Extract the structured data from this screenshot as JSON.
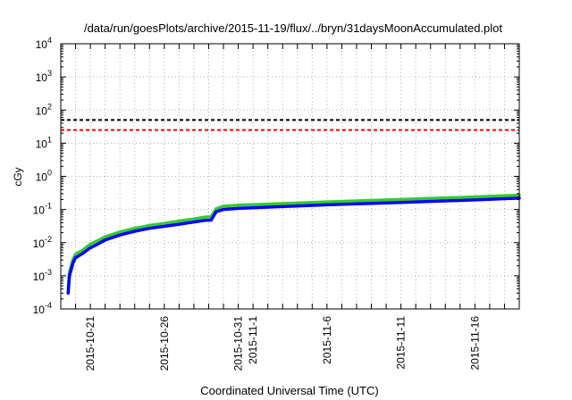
{
  "chart_data": {
    "type": "line",
    "title": "/data/run/goesPlots/archive/2015-11-19/flux/../bryn/31daysMoonAccumulated.plot",
    "xlabel": "Coordinated Universal Time (UTC)",
    "ylabel": "cGy",
    "yscale": "log",
    "ylim": [
      0.0001,
      10000
    ],
    "xlim": [
      "2015-10-19",
      "2015-11-19"
    ],
    "grid": true,
    "legend": "none",
    "y_ticks": [
      {
        "value": 0.0001,
        "base": "10",
        "exp": "-4"
      },
      {
        "value": 0.001,
        "base": "10",
        "exp": "-3"
      },
      {
        "value": 0.01,
        "base": "10",
        "exp": "-2"
      },
      {
        "value": 0.1,
        "base": "10",
        "exp": "-1"
      },
      {
        "value": 1,
        "base": "10",
        "exp": "0"
      },
      {
        "value": 10,
        "base": "10",
        "exp": "1"
      },
      {
        "value": 100,
        "base": "10",
        "exp": "2"
      },
      {
        "value": 1000,
        "base": "10",
        "exp": "3"
      },
      {
        "value": 10000,
        "base": "10",
        "exp": "4"
      }
    ],
    "x_ticks": [
      {
        "date": "2015-10-21",
        "label": "2015-10-21"
      },
      {
        "date": "2015-10-26",
        "label": "2015-10-26"
      },
      {
        "date": "2015-10-31",
        "label": "2015-10-31"
      },
      {
        "date": "2015-11-01",
        "label": "2015-11-1"
      },
      {
        "date": "2015-11-06",
        "label": "2015-11-6"
      },
      {
        "date": "2015-11-11",
        "label": "2015-11-11"
      },
      {
        "date": "2015-11-16",
        "label": "2015-11-16"
      }
    ],
    "reference_lines": [
      {
        "value": 50,
        "color": "#000000",
        "style": "dashed"
      },
      {
        "value": 25,
        "color": "#ff0000",
        "style": "dashed"
      }
    ],
    "series": [
      {
        "color": "#33cc33",
        "x": [
          "2015-10-19T12:00",
          "2015-10-19T14:00",
          "2015-10-19T20:00",
          "2015-10-20T00:00",
          "2015-10-20T12:00",
          "2015-10-21T00:00",
          "2015-10-21T12:00",
          "2015-10-22T00:00",
          "2015-10-23T00:00",
          "2015-10-24T00:00",
          "2015-10-25T00:00",
          "2015-10-26T00:00",
          "2015-10-27T00:00",
          "2015-10-28T00:00",
          "2015-10-28T18:00",
          "2015-10-29T04:00",
          "2015-10-29T12:00",
          "2015-10-30T00:00",
          "2015-10-31T00:00",
          "2015-11-02T00:00",
          "2015-11-06T00:00",
          "2015-11-11T00:00",
          "2015-11-16T00:00",
          "2015-11-19T00:00"
        ],
        "y": [
          0.0004,
          0.0013,
          0.0032,
          0.0045,
          0.006,
          0.009,
          0.0115,
          0.015,
          0.021,
          0.027,
          0.033,
          0.038,
          0.045,
          0.052,
          0.059,
          0.06,
          0.105,
          0.125,
          0.135,
          0.145,
          0.17,
          0.2,
          0.24,
          0.27
        ]
      },
      {
        "color": "#0000ff",
        "x": [
          "2015-10-19T12:00",
          "2015-10-19T14:00",
          "2015-10-19T20:00",
          "2015-10-20T00:00",
          "2015-10-20T12:00",
          "2015-10-21T00:00",
          "2015-10-21T12:00",
          "2015-10-22T00:00",
          "2015-10-23T00:00",
          "2015-10-24T00:00",
          "2015-10-25T00:00",
          "2015-10-26T00:00",
          "2015-10-27T00:00",
          "2015-10-28T00:00",
          "2015-10-28T18:00",
          "2015-10-29T04:00",
          "2015-10-29T12:00",
          "2015-10-30T00:00",
          "2015-10-31T00:00",
          "2015-11-02T00:00",
          "2015-11-06T00:00",
          "2015-11-11T00:00",
          "2015-11-16T00:00",
          "2015-11-19T00:00"
        ],
        "y": [
          0.0003,
          0.001,
          0.0025,
          0.0035,
          0.0048,
          0.007,
          0.009,
          0.012,
          0.017,
          0.022,
          0.027,
          0.031,
          0.036,
          0.042,
          0.047,
          0.048,
          0.085,
          0.1,
          0.108,
          0.118,
          0.138,
          0.163,
          0.195,
          0.22
        ]
      }
    ]
  }
}
